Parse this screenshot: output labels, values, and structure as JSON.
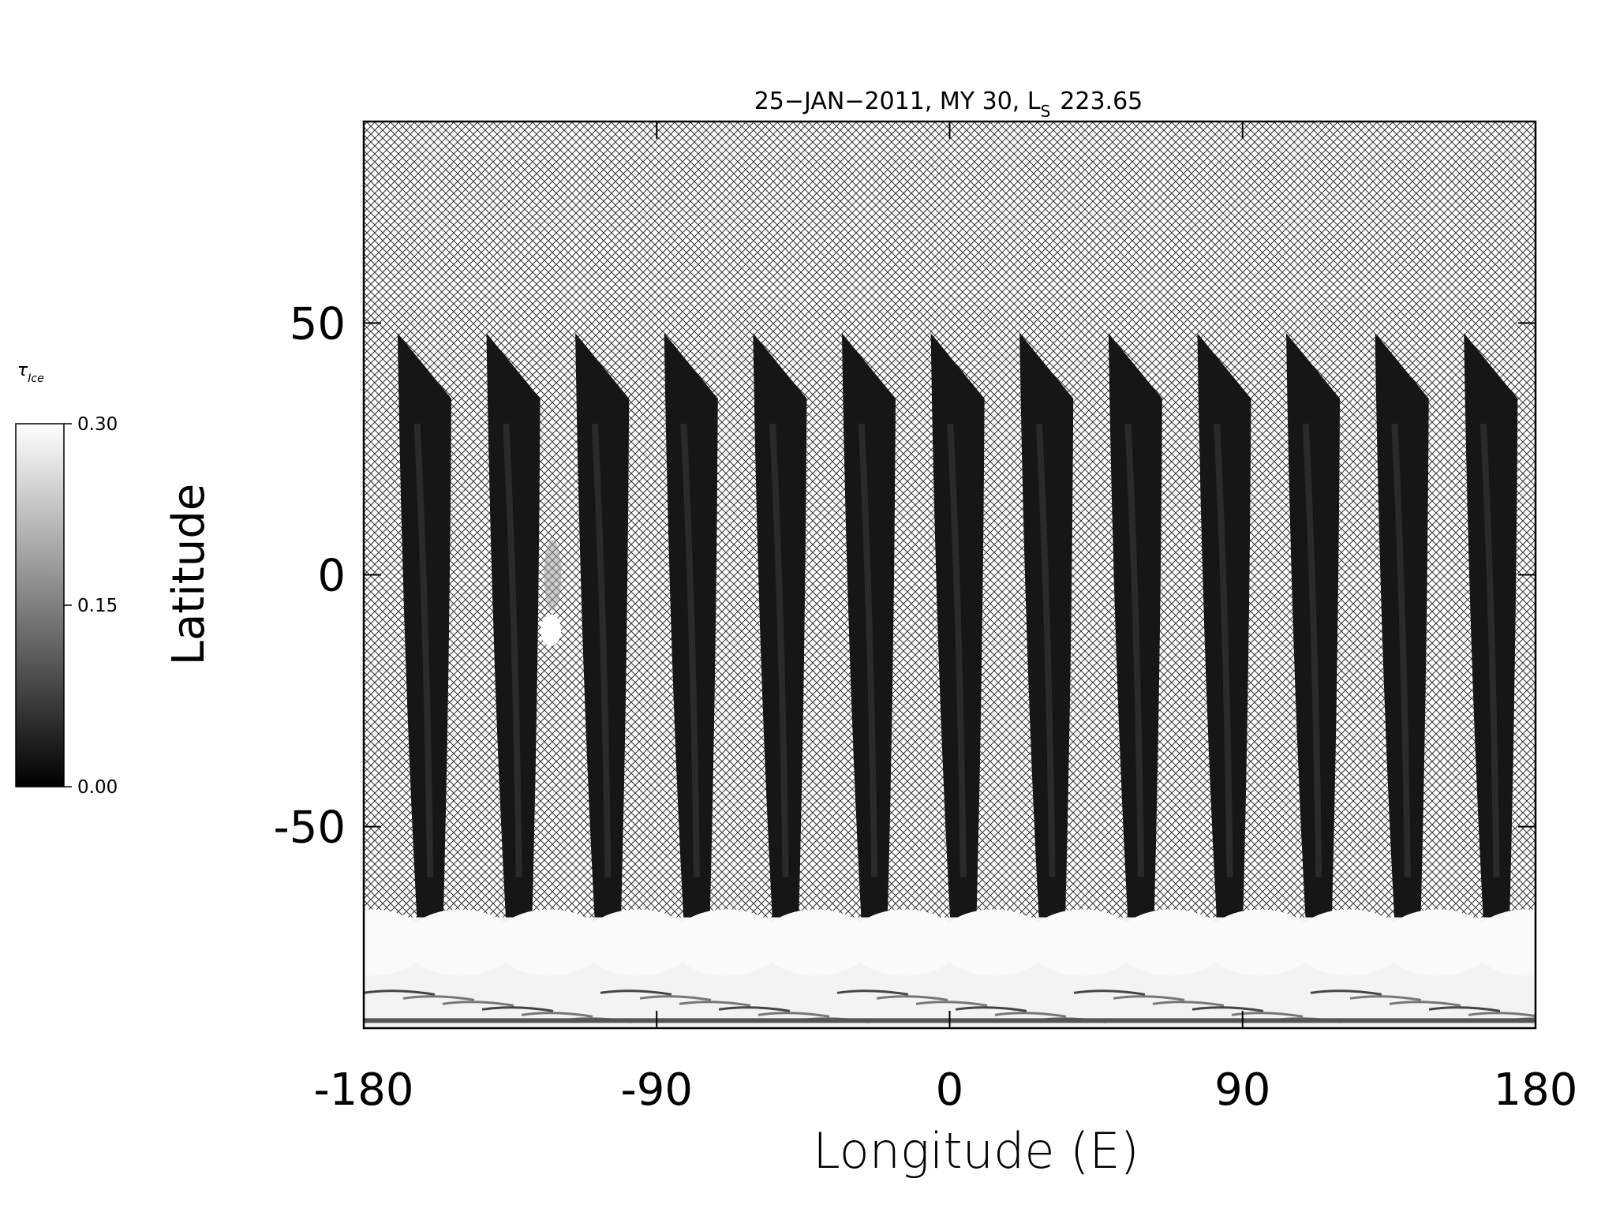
{
  "chart_data": {
    "type": "swath_map",
    "title": "25−JAN−2011, MY 30,  L",
    "title_subscript": "S",
    "title_suffix": "223.65",
    "xlabel": "Longitude (E)",
    "ylabel": "Latitude",
    "xlim": [
      -180,
      180
    ],
    "xticks": [
      -180,
      -90,
      0,
      90,
      180
    ],
    "ylim": [
      -90,
      90
    ],
    "yticks": [
      -50,
      0,
      50
    ],
    "colorbar": {
      "label": "τ",
      "label_subscript": "Ice",
      "lim": [
        0,
        0.3
      ],
      "ticks": [
        {
          "value": 0,
          "label": "0.00"
        },
        {
          "value": 0.15,
          "label": "0.15"
        },
        {
          "value": 0.3,
          "label": "0.30"
        }
      ],
      "colors": [
        "#000000",
        "#ffffff"
      ]
    }
  }
}
